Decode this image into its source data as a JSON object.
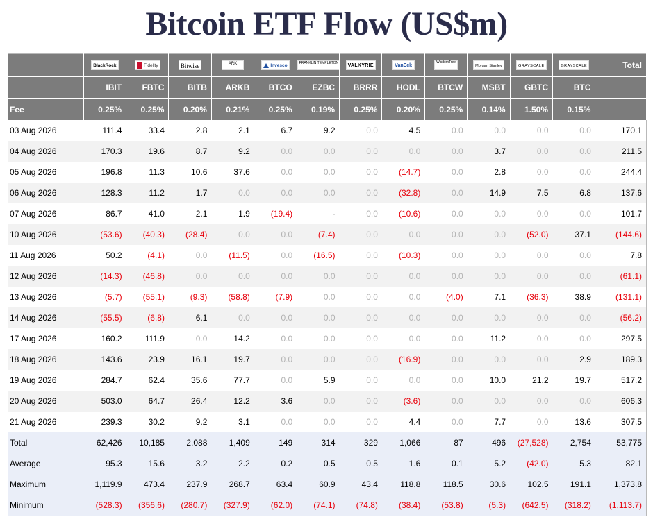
{
  "title": "Bitcoin ETF Flow (US$m)",
  "colors": {
    "header_bg": "#7c7c7c",
    "negative": "#e8000b",
    "zero": "#b3b3b3",
    "summary_bg": "#eaeef8",
    "title": "#2a2c4a"
  },
  "header": {
    "logos": [
      {
        "text": "BlackRock",
        "icon": "blackrock-logo"
      },
      {
        "text": "Fidelity",
        "icon": "fidelity-logo"
      },
      {
        "text": "Bitwise",
        "icon": "bitwise-logo"
      },
      {
        "text": "ARK",
        "icon": "ark-invest-logo"
      },
      {
        "text": "Invesco",
        "icon": "invesco-logo"
      },
      {
        "text": "FRANKLIN TEMPLETON",
        "icon": "franklin-templeton-logo"
      },
      {
        "text": "VALKYRIE",
        "icon": "valkyrie-logo"
      },
      {
        "text": "VanEck",
        "icon": "vaneck-logo"
      },
      {
        "text": "WisdomTree",
        "icon": "wisdomtree-logo"
      },
      {
        "text": "Morgan Stanley",
        "icon": "morgan-stanley-logo"
      },
      {
        "text": "GRAYSCALE",
        "icon": "grayscale-logo"
      },
      {
        "text": "GRAYSCALE",
        "icon": "grayscale-logo"
      }
    ],
    "total_label": "Total",
    "tickers": [
      "IBIT",
      "FBTC",
      "BITB",
      "ARKB",
      "BTCO",
      "EZBC",
      "BRRR",
      "HODL",
      "BTCW",
      "MSBT",
      "GBTC",
      "BTC"
    ],
    "fee_label": "Fee",
    "fees": [
      "0.25%",
      "0.25%",
      "0.20%",
      "0.21%",
      "0.25%",
      "0.19%",
      "0.25%",
      "0.20%",
      "0.25%",
      "0.14%",
      "1.50%",
      "0.15%"
    ]
  },
  "rows": [
    {
      "date": "03 Aug 2026",
      "values": [
        "111.4",
        "33.4",
        "2.8",
        "2.1",
        "6.7",
        "9.2",
        "0.0",
        "4.5",
        "0.0",
        "0.0",
        "0.0",
        "0.0"
      ],
      "total": "170.1"
    },
    {
      "date": "04 Aug 2026",
      "values": [
        "170.3",
        "19.6",
        "8.7",
        "9.2",
        "0.0",
        "0.0",
        "0.0",
        "0.0",
        "0.0",
        "3.7",
        "0.0",
        "0.0"
      ],
      "total": "211.5"
    },
    {
      "date": "05 Aug 2026",
      "values": [
        "196.8",
        "11.3",
        "10.6",
        "37.6",
        "0.0",
        "0.0",
        "0.0",
        "(14.7)",
        "0.0",
        "2.8",
        "0.0",
        "0.0"
      ],
      "total": "244.4"
    },
    {
      "date": "06 Aug 2026",
      "values": [
        "128.3",
        "11.2",
        "1.7",
        "0.0",
        "0.0",
        "0.0",
        "0.0",
        "(32.8)",
        "0.0",
        "14.9",
        "7.5",
        "6.8"
      ],
      "total": "137.6"
    },
    {
      "date": "07 Aug 2026",
      "values": [
        "86.7",
        "41.0",
        "2.1",
        "1.9",
        "(19.4)",
        "-",
        "0.0",
        "(10.6)",
        "0.0",
        "0.0",
        "0.0",
        "0.0"
      ],
      "total": "101.7"
    },
    {
      "date": "10 Aug 2026",
      "values": [
        "(53.6)",
        "(40.3)",
        "(28.4)",
        "0.0",
        "0.0",
        "(7.4)",
        "0.0",
        "0.0",
        "0.0",
        "0.0",
        "(52.0)",
        "37.1"
      ],
      "total": "(144.6)"
    },
    {
      "date": "11 Aug 2026",
      "values": [
        "50.2",
        "(4.1)",
        "0.0",
        "(11.5)",
        "0.0",
        "(16.5)",
        "0.0",
        "(10.3)",
        "0.0",
        "0.0",
        "0.0",
        "0.0"
      ],
      "total": "7.8"
    },
    {
      "date": "12 Aug 2026",
      "values": [
        "(14.3)",
        "(46.8)",
        "0.0",
        "0.0",
        "0.0",
        "0.0",
        "0.0",
        "0.0",
        "0.0",
        "0.0",
        "0.0",
        "0.0"
      ],
      "total": "(61.1)"
    },
    {
      "date": "13 Aug 2026",
      "values": [
        "(5.7)",
        "(55.1)",
        "(9.3)",
        "(58.8)",
        "(7.9)",
        "0.0",
        "0.0",
        "0.0",
        "(4.0)",
        "7.1",
        "(36.3)",
        "38.9"
      ],
      "total": "(131.1)"
    },
    {
      "date": "14 Aug 2026",
      "values": [
        "(55.5)",
        "(6.8)",
        "6.1",
        "0.0",
        "0.0",
        "0.0",
        "0.0",
        "0.0",
        "0.0",
        "0.0",
        "0.0",
        "0.0"
      ],
      "total": "(56.2)"
    },
    {
      "date": "17 Aug 2026",
      "values": [
        "160.2",
        "111.9",
        "0.0",
        "14.2",
        "0.0",
        "0.0",
        "0.0",
        "0.0",
        "0.0",
        "11.2",
        "0.0",
        "0.0"
      ],
      "total": "297.5"
    },
    {
      "date": "18 Aug 2026",
      "values": [
        "143.6",
        "23.9",
        "16.1",
        "19.7",
        "0.0",
        "0.0",
        "0.0",
        "(16.9)",
        "0.0",
        "0.0",
        "0.0",
        "2.9"
      ],
      "total": "189.3"
    },
    {
      "date": "19 Aug 2026",
      "values": [
        "284.7",
        "62.4",
        "35.6",
        "77.7",
        "0.0",
        "5.9",
        "0.0",
        "0.0",
        "0.0",
        "10.0",
        "21.2",
        "19.7"
      ],
      "total": "517.2"
    },
    {
      "date": "20 Aug 2026",
      "values": [
        "503.0",
        "64.7",
        "26.4",
        "12.2",
        "3.6",
        "0.0",
        "0.0",
        "(3.6)",
        "0.0",
        "0.0",
        "0.0",
        "0.0"
      ],
      "total": "606.3"
    },
    {
      "date": "21 Aug 2026",
      "values": [
        "239.3",
        "30.2",
        "9.2",
        "3.1",
        "0.0",
        "0.0",
        "0.0",
        "4.4",
        "0.0",
        "7.7",
        "0.0",
        "13.6"
      ],
      "total": "307.5"
    }
  ],
  "summary": [
    {
      "label": "Total",
      "values": [
        "62,426",
        "10,185",
        "2,088",
        "1,409",
        "149",
        "314",
        "329",
        "1,066",
        "87",
        "496",
        "(27,528)",
        "2,754"
      ],
      "total": "53,775"
    },
    {
      "label": "Average",
      "values": [
        "95.3",
        "15.6",
        "3.2",
        "2.2",
        "0.2",
        "0.5",
        "0.5",
        "1.6",
        "0.1",
        "5.2",
        "(42.0)",
        "5.3"
      ],
      "total": "82.1"
    },
    {
      "label": "Maximum",
      "values": [
        "1,119.9",
        "473.4",
        "237.9",
        "268.7",
        "63.4",
        "60.9",
        "43.4",
        "118.8",
        "118.5",
        "30.6",
        "102.5",
        "191.1"
      ],
      "total": "1,373.8"
    },
    {
      "label": "Minimum",
      "values": [
        "(528.3)",
        "(356.6)",
        "(280.7)",
        "(327.9)",
        "(62.0)",
        "(74.1)",
        "(74.8)",
        "(38.4)",
        "(53.8)",
        "(5.3)",
        "(642.5)",
        "(318.2)"
      ],
      "total": "(1,113.7)"
    }
  ]
}
